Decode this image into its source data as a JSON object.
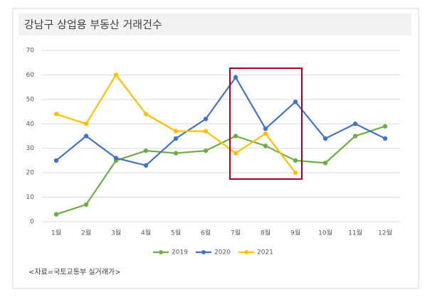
{
  "chart_data": {
    "type": "line",
    "title": "강남구 상업용 부동산 거래건수",
    "categories": [
      "1월",
      "2월",
      "3월",
      "4월",
      "5월",
      "6월",
      "7월",
      "8월",
      "9월",
      "10월",
      "11월",
      "12월"
    ],
    "series": [
      {
        "name": "2019",
        "color": "#70ad47",
        "values": [
          3,
          7,
          25,
          29,
          28,
          29,
          35,
          31,
          25,
          24,
          35,
          39
        ]
      },
      {
        "name": "2020",
        "color": "#4472c4",
        "values": [
          25,
          35,
          26,
          23,
          34,
          42,
          59,
          38,
          49,
          34,
          40,
          34
        ]
      },
      {
        "name": "2021",
        "color": "#ffc000",
        "values": [
          44,
          40,
          60,
          44,
          37,
          37,
          28,
          36,
          20,
          null,
          null,
          null
        ]
      }
    ],
    "ylim": [
      0,
      70
    ],
    "yticks": [
      0,
      10,
      20,
      30,
      40,
      50,
      60,
      70
    ],
    "grid": true,
    "legend": "bottom",
    "source": "<자료=국토교통부 실거래가>"
  }
}
